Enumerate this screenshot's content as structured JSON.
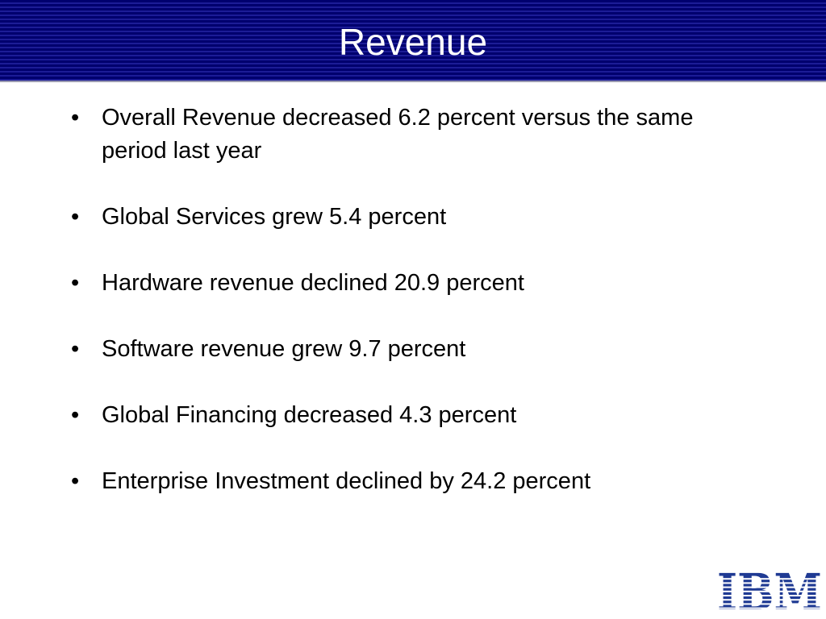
{
  "header": {
    "title": "Revenue"
  },
  "bullets": [
    "Overall Revenue decreased 6.2 percent versus the same period last year",
    "Global Services grew 5.4 percent",
    "Hardware revenue declined 20.9 percent",
    "Software revenue grew 9.7 percent",
    "Global Financing decreased 4.3 percent",
    "Enterprise Investment declined by 24.2 percent"
  ],
  "logo": "IBM"
}
